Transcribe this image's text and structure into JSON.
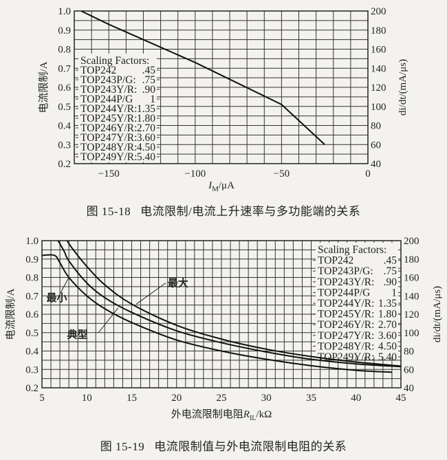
{
  "figures": [
    {
      "caption_number": "图 15-18",
      "caption_text": "电流限制/电流上升速率与多功能端的关系"
    },
    {
      "caption_number": "图 15-19",
      "caption_text": "电流限制值与外电流限制电阻的关系"
    }
  ],
  "chart_data": [
    {
      "type": "line",
      "title": "图 15-18 电流限制/电流上升速率与多功能端的关系",
      "xlabel": "I_M/μA",
      "ylabel": "电流限制/A",
      "y2label": "di/dt/(mA/μs)",
      "xlim": [
        -170,
        0
      ],
      "ylim": [
        0.2,
        1.0
      ],
      "y2lim": [
        40,
        200
      ],
      "x_ticks": [
        -150,
        -100,
        -50,
        0
      ],
      "y_ticks": [
        0.2,
        0.3,
        0.4,
        0.5,
        0.6,
        0.7,
        0.8,
        0.9,
        1.0
      ],
      "y2_ticks": [
        40,
        60,
        80,
        100,
        120,
        140,
        160,
        180,
        200
      ],
      "grid": true,
      "grid_x_step": 10,
      "grid_y_step": 0.05,
      "series": [
        {
          "name": "电流限制",
          "x": [
            -166,
            -150,
            -125,
            -100,
            -75,
            -50,
            -25
          ],
          "y": [
            1.0,
            0.93,
            0.83,
            0.73,
            0.62,
            0.51,
            0.3
          ]
        }
      ],
      "legend": {
        "title": "Scaling Factors:",
        "position": "left",
        "entries": [
          {
            "device": "TOP242",
            "factor": ".45"
          },
          {
            "device": "TOP243P/G:",
            "factor": ".75"
          },
          {
            "device": "TOP243Y/R:",
            "factor": ".90"
          },
          {
            "device": "TOP244P/G",
            "factor": "1"
          },
          {
            "device": "TOP244Y/R:",
            "factor": "1.35"
          },
          {
            "device": "TOP245Y/R:",
            "factor": "1.80"
          },
          {
            "device": "TOP246Y/R:",
            "factor": "2.70"
          },
          {
            "device": "TOP247Y/R:",
            "factor": "3.60"
          },
          {
            "device": "TOP248Y/R:",
            "factor": "4.50"
          },
          {
            "device": "TOP249Y/R:",
            "factor": "5.40"
          }
        ]
      }
    },
    {
      "type": "line",
      "title": "图 15-19 电流限制值与外电流限制电阻的关系",
      "xlabel": "外电流限制电阻R_IL/kΩ",
      "ylabel": "电流限制/A",
      "y2label": "di/dt/(mA/μs)",
      "xlim": [
        5,
        45
      ],
      "ylim": [
        0.2,
        1.0
      ],
      "y2lim": [
        40,
        200
      ],
      "x_ticks": [
        5,
        10,
        15,
        20,
        25,
        30,
        35,
        40,
        45
      ],
      "y_ticks": [
        0.2,
        0.3,
        0.4,
        0.5,
        0.6,
        0.7,
        0.8,
        0.9,
        1.0
      ],
      "y2_ticks": [
        40,
        60,
        80,
        100,
        120,
        140,
        160,
        180,
        200
      ],
      "grid": true,
      "grid_x_step": 1,
      "grid_y_step": 0.05,
      "series": [
        {
          "name": "最大",
          "x": [
            7.8,
            8.5,
            10,
            12,
            15,
            20,
            25,
            30,
            35,
            40,
            45
          ],
          "y": [
            1.0,
            0.95,
            0.86,
            0.76,
            0.655,
            0.54,
            0.465,
            0.41,
            0.37,
            0.34,
            0.318
          ]
        },
        {
          "name": "典型",
          "x": [
            6.8,
            7.5,
            8,
            10,
            12,
            15,
            20,
            25,
            30,
            35,
            40,
            45
          ],
          "y": [
            1.0,
            0.94,
            0.89,
            0.77,
            0.69,
            0.61,
            0.51,
            0.445,
            0.395,
            0.355,
            0.33,
            0.315
          ]
        },
        {
          "name": "最小",
          "x": [
            5,
            6.4,
            7,
            8,
            10,
            12,
            15,
            20,
            25,
            30,
            35,
            40,
            44
          ],
          "y": [
            0.92,
            0.92,
            0.88,
            0.8,
            0.7,
            0.63,
            0.555,
            0.46,
            0.4,
            0.355,
            0.32,
            0.295,
            0.285
          ]
        }
      ],
      "annotations": [
        "最大",
        "典型",
        "最小"
      ],
      "legend": {
        "title": "Scaling Factors:",
        "position": "upper right",
        "entries": [
          {
            "device": "TOP242",
            "factor": ".45"
          },
          {
            "device": "TOP243P/G:",
            "factor": ".75"
          },
          {
            "device": "TOP243Y/R:",
            "factor": ".90"
          },
          {
            "device": "TOP244P/G",
            "factor": "1"
          },
          {
            "device": "TOP244Y/R:",
            "factor": "1.35"
          },
          {
            "device": "TOP245Y/R:",
            "factor": "1.80"
          },
          {
            "device": "TOP246Y/R:",
            "factor": "2.70"
          },
          {
            "device": "TOP247Y/R:",
            "factor": "3.60"
          },
          {
            "device": "TOP248Y/R:",
            "factor": "4.50"
          },
          {
            "device": "TOP249Y/R:",
            "factor": "5.40"
          }
        ]
      }
    }
  ]
}
